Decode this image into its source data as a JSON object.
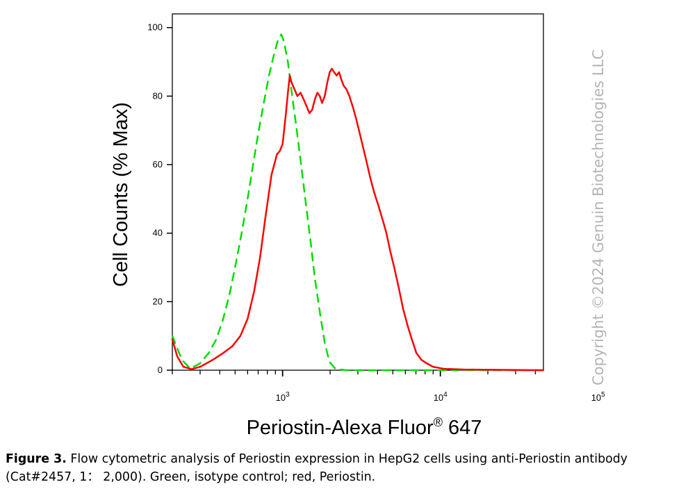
{
  "chart_data": {
    "type": "line",
    "title": "",
    "xlabel": "Periostin-Alexa Fluor",
    "xlabel_sup": "®",
    "xlabel_suffix": " 647",
    "ylabel": "Cell Counts (% Max)",
    "x_scale": "log",
    "xlim": [
      200,
      45000
    ],
    "ylim": [
      0,
      104
    ],
    "yticks": [
      0,
      20,
      40,
      60,
      80,
      100
    ],
    "xtick_labels": [
      {
        "base": "10",
        "exp": "3",
        "value": 1000
      },
      {
        "base": "10",
        "exp": "4",
        "value": 10000
      },
      {
        "base": "10",
        "exp": "5",
        "value": 100000
      }
    ],
    "grid": false,
    "legend": "none",
    "series": [
      {
        "color": "#00dd00",
        "dash": "dashed",
        "points": [
          [
            200,
            10
          ],
          [
            230,
            3
          ],
          [
            260,
            0.5
          ],
          [
            300,
            2
          ],
          [
            340,
            5
          ],
          [
            380,
            9
          ],
          [
            420,
            15
          ],
          [
            460,
            22
          ],
          [
            500,
            30
          ],
          [
            550,
            40
          ],
          [
            600,
            50
          ],
          [
            650,
            60
          ],
          [
            700,
            69
          ],
          [
            760,
            78
          ],
          [
            820,
            86
          ],
          [
            880,
            92
          ],
          [
            930,
            96
          ],
          [
            980,
            98
          ],
          [
            1020,
            96
          ],
          [
            1080,
            90
          ],
          [
            1150,
            80
          ],
          [
            1230,
            70
          ],
          [
            1310,
            60
          ],
          [
            1400,
            49
          ],
          [
            1500,
            38
          ],
          [
            1600,
            27
          ],
          [
            1720,
            17
          ],
          [
            1850,
            8
          ],
          [
            1980,
            2.5
          ],
          [
            2150,
            0.5
          ],
          [
            2500,
            0
          ],
          [
            45000,
            0
          ]
        ]
      },
      {
        "color": "#ff0000",
        "dash": "solid",
        "points": [
          [
            200,
            9
          ],
          [
            215,
            4
          ],
          [
            235,
            1
          ],
          [
            265,
            0.3
          ],
          [
            300,
            1
          ],
          [
            360,
            3
          ],
          [
            420,
            5
          ],
          [
            480,
            7
          ],
          [
            540,
            10
          ],
          [
            600,
            15
          ],
          [
            660,
            23
          ],
          [
            720,
            33
          ],
          [
            780,
            45
          ],
          [
            850,
            57
          ],
          [
            920,
            63
          ],
          [
            960,
            64
          ],
          [
            1000,
            66
          ],
          [
            1050,
            75
          ],
          [
            1080,
            81
          ],
          [
            1110,
            86
          ],
          [
            1140,
            84
          ],
          [
            1190,
            82
          ],
          [
            1240,
            80
          ],
          [
            1300,
            81
          ],
          [
            1360,
            79
          ],
          [
            1420,
            77
          ],
          [
            1480,
            75
          ],
          [
            1540,
            76
          ],
          [
            1600,
            79
          ],
          [
            1660,
            81
          ],
          [
            1720,
            80
          ],
          [
            1780,
            78
          ],
          [
            1850,
            80
          ],
          [
            1920,
            84
          ],
          [
            1990,
            87
          ],
          [
            2050,
            88
          ],
          [
            2120,
            87
          ],
          [
            2200,
            86
          ],
          [
            2280,
            87
          ],
          [
            2350,
            85
          ],
          [
            2440,
            83
          ],
          [
            2540,
            82
          ],
          [
            2650,
            80
          ],
          [
            2780,
            77
          ],
          [
            2900,
            74
          ],
          [
            3050,
            70
          ],
          [
            3200,
            66
          ],
          [
            3400,
            61
          ],
          [
            3600,
            56
          ],
          [
            3800,
            52
          ],
          [
            4050,
            48
          ],
          [
            4300,
            44
          ],
          [
            4550,
            40
          ],
          [
            4800,
            35
          ],
          [
            5100,
            30
          ],
          [
            5450,
            24
          ],
          [
            5800,
            18
          ],
          [
            6200,
            13
          ],
          [
            6600,
            9
          ],
          [
            7050,
            5
          ],
          [
            7600,
            3
          ],
          [
            8200,
            2
          ],
          [
            9000,
            1
          ],
          [
            10500,
            0.4
          ],
          [
            14000,
            0.2
          ],
          [
            45000,
            0
          ]
        ]
      }
    ]
  },
  "watermark": "Copyright ©2024 Genuin Biotechnologies LLC",
  "caption": {
    "label": "Figure 3.",
    "text": " Flow cytometric analysis of Periostin expression in HepG2 cells using anti-Periostin antibody (Cat#2457, 1： 2,000). Green, isotype control; red, Periostin."
  }
}
